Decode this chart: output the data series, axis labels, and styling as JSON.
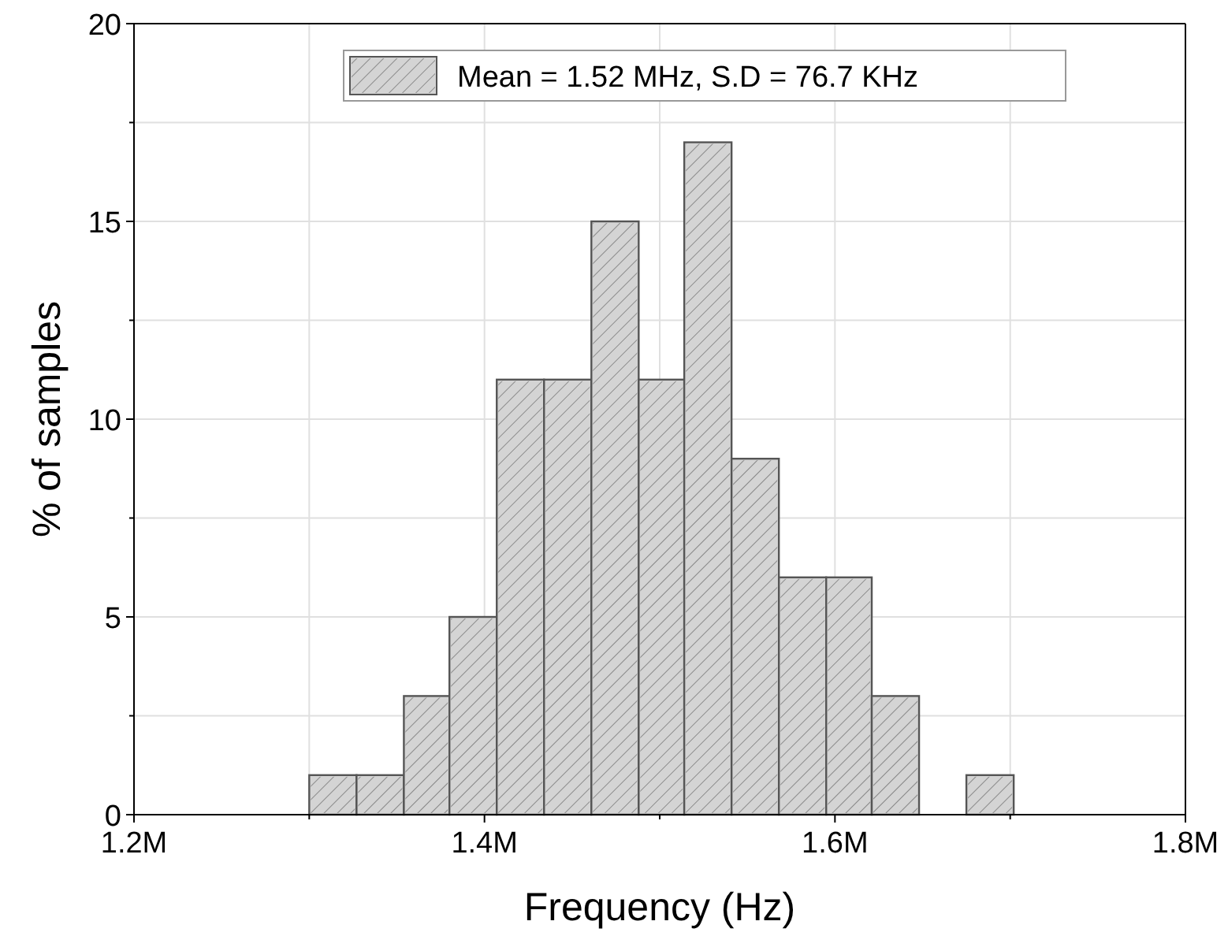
{
  "chart_data": {
    "type": "histogram",
    "xlabel": "Frequency (Hz)",
    "ylabel": "% of samples",
    "bins": [
      1300000,
      1327000,
      1354000,
      1380000,
      1407000,
      1434000,
      1461000,
      1488000,
      1514000,
      1541000,
      1568000,
      1595000,
      1621000,
      1648000,
      1675000,
      1702000
    ],
    "series": [
      {
        "name": "Mean = 1.52 MHz, S.D = 76.7 KHz",
        "color": "#d4d4d4",
        "values": [
          1,
          1,
          3,
          5,
          11,
          11,
          15,
          11,
          17,
          9,
          6,
          6,
          3,
          0,
          1
        ]
      }
    ],
    "xlim": [
      1200000,
      1800000
    ],
    "xticks": [
      {
        "value": 1200000,
        "label": "1.2M"
      },
      {
        "value": 1300000,
        "label": null
      },
      {
        "value": 1400000,
        "label": "1.4M"
      },
      {
        "value": 1500000,
        "label": null
      },
      {
        "value": 1600000,
        "label": "1.6M"
      },
      {
        "value": 1700000,
        "label": null
      },
      {
        "value": 1800000,
        "label": "1.8M"
      }
    ],
    "ylim": [
      0,
      20
    ],
    "yticks": [
      0,
      {
        "value": 2.5,
        "label": null
      },
      5,
      {
        "value": 7.5,
        "label": null
      },
      10,
      {
        "value": 12.5,
        "label": null
      },
      15,
      {
        "value": 17.5,
        "label": null
      },
      20
    ],
    "grid": true,
    "legend": "top"
  }
}
